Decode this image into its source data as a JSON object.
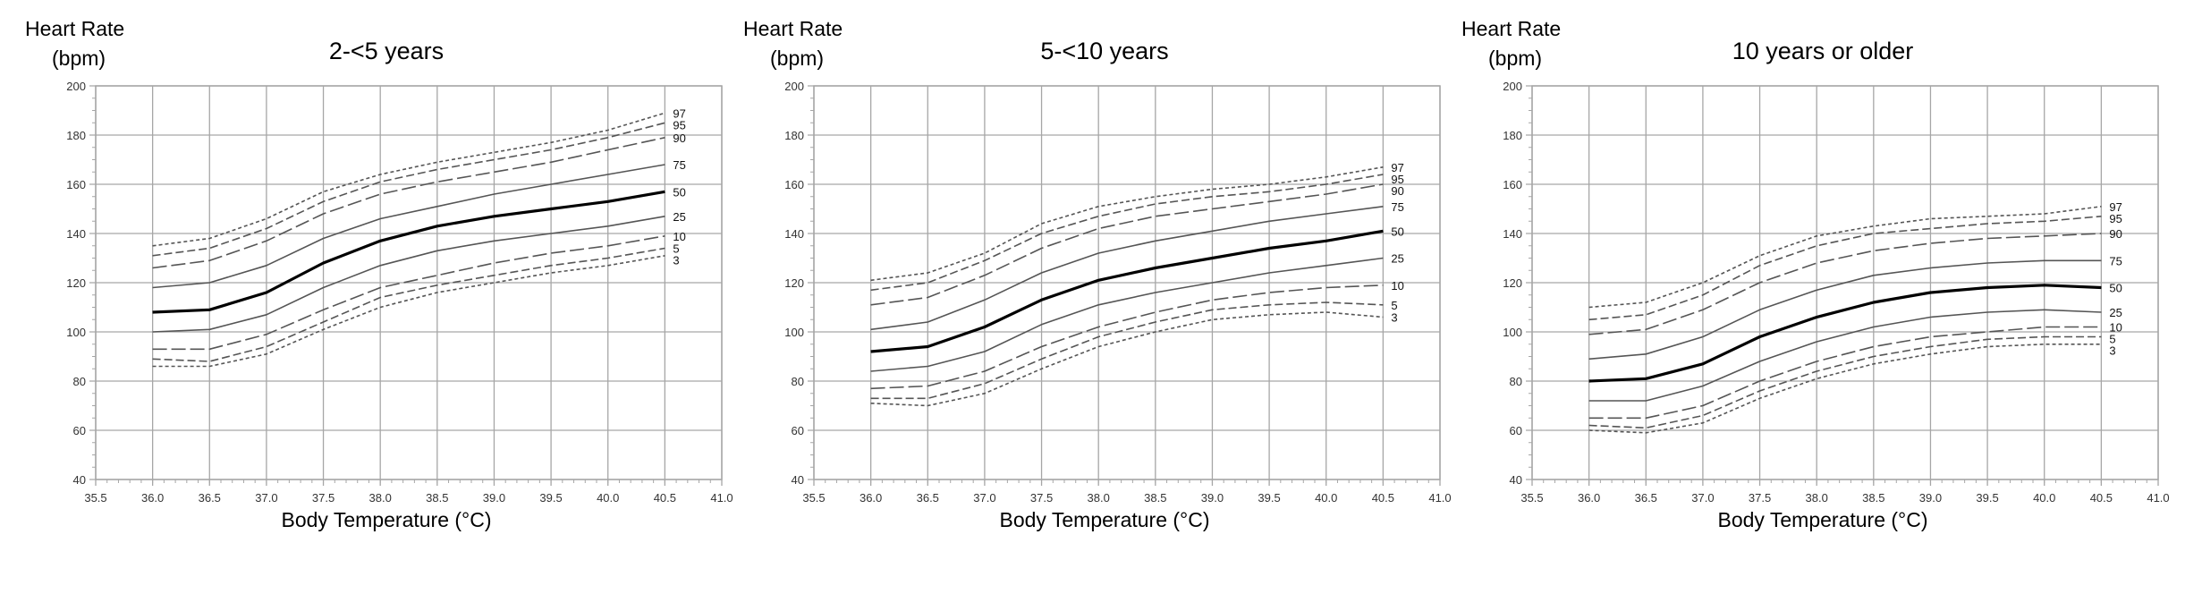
{
  "colors": {
    "grid": "#a6a6a6",
    "frame": "#a6a6a6",
    "curve": "#555555",
    "median": "#000000"
  },
  "chart_data": [
    {
      "type": "line",
      "title": "2-<5 years",
      "ylabel": "Heart Rate\n(bpm)",
      "ylabel_lines": [
        "Heart Rate",
        "(bpm)"
      ],
      "xlabel": "Body Temperature (°C)",
      "xlim": [
        35.5,
        41.0
      ],
      "ylim": [
        40,
        200
      ],
      "xticks": [
        "35.5",
        "36.0",
        "36.5",
        "37.0",
        "37.5",
        "38.0",
        "38.5",
        "39.0",
        "39.5",
        "40.0",
        "40.5",
        "41.0"
      ],
      "yticks": [
        "40",
        "60",
        "80",
        "100",
        "120",
        "140",
        "160",
        "180",
        "200"
      ],
      "grid": true,
      "x": [
        36.0,
        36.5,
        37.0,
        37.5,
        38.0,
        38.5,
        39.0,
        39.5,
        40.0,
        40.5
      ],
      "series": [
        {
          "name": "97",
          "values": [
            135,
            138,
            146,
            157,
            164,
            169,
            173,
            177,
            182,
            189
          ]
        },
        {
          "name": "95",
          "values": [
            131,
            134,
            142,
            153,
            161,
            166,
            170,
            174,
            179,
            185
          ]
        },
        {
          "name": "90",
          "values": [
            126,
            129,
            137,
            148,
            156,
            161,
            165,
            169,
            174,
            179
          ]
        },
        {
          "name": "75",
          "values": [
            118,
            120,
            127,
            138,
            146,
            151,
            156,
            160,
            164,
            168
          ]
        },
        {
          "name": "50",
          "values": [
            108,
            109,
            116,
            128,
            137,
            143,
            147,
            150,
            153,
            157
          ]
        },
        {
          "name": "25",
          "values": [
            100,
            101,
            107,
            118,
            127,
            133,
            137,
            140,
            143,
            147
          ]
        },
        {
          "name": "10",
          "values": [
            93,
            93,
            99,
            109,
            118,
            123,
            128,
            132,
            135,
            139
          ]
        },
        {
          "name": "5",
          "values": [
            89,
            88,
            94,
            104,
            114,
            119,
            123,
            127,
            130,
            134
          ]
        },
        {
          "name": "3",
          "values": [
            86,
            86,
            91,
            101,
            110,
            116,
            120,
            124,
            127,
            131
          ]
        }
      ]
    },
    {
      "type": "line",
      "title": "5-<10 years",
      "ylabel": "Heart Rate\n(bpm)",
      "ylabel_lines": [
        "Heart Rate",
        "(bpm)"
      ],
      "xlabel": "Body Temperature (°C)",
      "xlim": [
        35.5,
        41.0
      ],
      "ylim": [
        40,
        200
      ],
      "xticks": [
        "35.5",
        "36.0",
        "36.5",
        "37.0",
        "37.5",
        "38.0",
        "38.5",
        "39.0",
        "39.5",
        "40.0",
        "40.5",
        "41.0"
      ],
      "yticks": [
        "40",
        "60",
        "80",
        "100",
        "120",
        "140",
        "160",
        "180",
        "200"
      ],
      "grid": true,
      "x": [
        36.0,
        36.5,
        37.0,
        37.5,
        38.0,
        38.5,
        39.0,
        39.5,
        40.0,
        40.5
      ],
      "series": [
        {
          "name": "97",
          "values": [
            121,
            124,
            132,
            144,
            151,
            155,
            158,
            160,
            163,
            167
          ]
        },
        {
          "name": "95",
          "values": [
            117,
            120,
            129,
            140,
            147,
            152,
            155,
            157,
            160,
            164
          ]
        },
        {
          "name": "90",
          "values": [
            111,
            114,
            123,
            134,
            142,
            147,
            150,
            153,
            156,
            160
          ]
        },
        {
          "name": "75",
          "values": [
            101,
            104,
            113,
            124,
            132,
            137,
            141,
            145,
            148,
            151
          ]
        },
        {
          "name": "50",
          "values": [
            92,
            94,
            102,
            113,
            121,
            126,
            130,
            134,
            137,
            141
          ]
        },
        {
          "name": "25",
          "values": [
            84,
            86,
            92,
            103,
            111,
            116,
            120,
            124,
            127,
            130
          ]
        },
        {
          "name": "10",
          "values": [
            77,
            78,
            84,
            94,
            102,
            108,
            113,
            116,
            118,
            119
          ]
        },
        {
          "name": "5",
          "values": [
            73,
            73,
            79,
            89,
            98,
            104,
            109,
            111,
            112,
            111
          ]
        },
        {
          "name": "3",
          "values": [
            71,
            70,
            75,
            85,
            94,
            100,
            105,
            107,
            108,
            106
          ]
        }
      ]
    },
    {
      "type": "line",
      "title": "10 years or older",
      "ylabel": "Heart Rate\n(bpm)",
      "ylabel_lines": [
        "Heart Rate",
        "(bpm)"
      ],
      "xlabel": "Body Temperature (°C)",
      "xlim": [
        35.5,
        41.0
      ],
      "ylim": [
        40,
        200
      ],
      "xticks": [
        "35.5",
        "36.0",
        "36.5",
        "37.0",
        "37.5",
        "38.0",
        "38.5",
        "39.0",
        "39.5",
        "40.0",
        "40.5",
        "41.0"
      ],
      "yticks": [
        "40",
        "60",
        "80",
        "100",
        "120",
        "140",
        "160",
        "180",
        "200"
      ],
      "grid": true,
      "x": [
        36.0,
        36.5,
        37.0,
        37.5,
        38.0,
        38.5,
        39.0,
        39.5,
        40.0,
        40.5
      ],
      "series": [
        {
          "name": "97",
          "values": [
            110,
            112,
            120,
            131,
            139,
            143,
            146,
            147,
            148,
            151
          ]
        },
        {
          "name": "95",
          "values": [
            105,
            107,
            115,
            127,
            135,
            140,
            142,
            144,
            145,
            147
          ]
        },
        {
          "name": "90",
          "values": [
            99,
            101,
            109,
            120,
            128,
            133,
            136,
            138,
            139,
            140
          ]
        },
        {
          "name": "75",
          "values": [
            89,
            91,
            98,
            109,
            117,
            123,
            126,
            128,
            129,
            129
          ]
        },
        {
          "name": "50",
          "values": [
            80,
            81,
            87,
            98,
            106,
            112,
            116,
            118,
            119,
            118
          ]
        },
        {
          "name": "25",
          "values": [
            72,
            72,
            78,
            88,
            96,
            102,
            106,
            108,
            109,
            108
          ]
        },
        {
          "name": "10",
          "values": [
            65,
            65,
            70,
            80,
            88,
            94,
            98,
            100,
            102,
            102
          ]
        },
        {
          "name": "5",
          "values": [
            62,
            61,
            66,
            76,
            84,
            90,
            94,
            97,
            98,
            98
          ]
        },
        {
          "name": "3",
          "values": [
            60,
            59,
            63,
            73,
            81,
            87,
            91,
            94,
            95,
            95
          ]
        }
      ]
    }
  ]
}
